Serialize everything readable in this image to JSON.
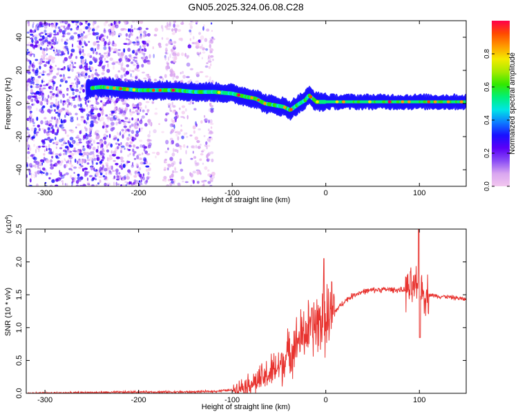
{
  "title": "GN05.2025.324.06.08.C28",
  "colors": {
    "snr_line": "#e8332f",
    "axis": "#000000",
    "colorbar": [
      "#f2c7ef",
      "#d9a6f0",
      "#8a4cf5",
      "#5b00f7",
      "#1a10ff",
      "#0d7bff",
      "#00e5e6",
      "#00f07a",
      "#32e800",
      "#a6ea00",
      "#f4ea00",
      "#ff9a00",
      "#ff4a00",
      "#ff004a"
    ]
  },
  "chart_data": [
    {
      "type": "heatmap",
      "xlabel": "Height of straight line (km)",
      "ylabel": "Frequency (Hz)",
      "xlim": [
        -320,
        150
      ],
      "ylim": [
        -50,
        50
      ],
      "xticks": [
        -300,
        -200,
        -100,
        0,
        100
      ],
      "yticks": [
        -40,
        -20,
        0,
        20,
        40
      ],
      "colorbar": {
        "label": "Normalized spectral amplitude",
        "range": [
          0.0,
          1.0
        ],
        "ticks": [
          0.0,
          0.2,
          0.4,
          0.6,
          0.8
        ]
      },
      "ridge": {
        "x": [
          -255,
          -240,
          -220,
          -200,
          -180,
          -160,
          -140,
          -120,
          -100,
          -85,
          -75,
          -65,
          -55,
          -45,
          -38,
          -33,
          -28,
          -22,
          -18,
          -14,
          -10,
          -5,
          0,
          20,
          50,
          80,
          100,
          120,
          150
        ],
        "y": [
          9,
          10,
          9,
          8,
          8,
          8,
          7,
          7,
          6,
          4,
          3,
          0,
          -1,
          -2,
          -4,
          -2,
          0,
          2,
          5,
          3,
          1,
          1,
          1,
          1,
          1,
          1,
          1,
          1,
          1
        ]
      },
      "noise_region": [
        -320,
        -120
      ]
    },
    {
      "type": "line",
      "xlabel": "Height of straight line (km)",
      "ylabel": "SNR (10 * v/v)",
      "scale_note": "(x10",
      "scale_exp": "4",
      "xlim": [
        -320,
        150
      ],
      "ylim": [
        0,
        2.5
      ],
      "xticks": [
        -300,
        -200,
        -100,
        0,
        100
      ],
      "yticks": [
        0.0,
        0.5,
        1.0,
        1.5,
        2.0,
        2.5
      ],
      "series": [
        {
          "x": [
            -320,
            -250,
            -200,
            -150,
            -120,
            -100,
            -90,
            -80,
            -70,
            -60,
            -50,
            -40,
            -30,
            -20,
            -10,
            0,
            10,
            20,
            30,
            40,
            50,
            60,
            70,
            80,
            90,
            95,
            100,
            105,
            110,
            120,
            130,
            140,
            150
          ],
          "y": [
            0.0,
            0.01,
            0.02,
            0.02,
            0.03,
            0.05,
            0.1,
            0.15,
            0.2,
            0.3,
            0.4,
            0.6,
            0.8,
            0.95,
            1.05,
            1.15,
            1.25,
            1.4,
            1.5,
            1.55,
            1.57,
            1.58,
            1.58,
            1.57,
            1.58,
            1.6,
            1.55,
            1.52,
            1.5,
            1.48,
            1.47,
            1.45,
            1.43
          ]
        }
      ]
    }
  ]
}
